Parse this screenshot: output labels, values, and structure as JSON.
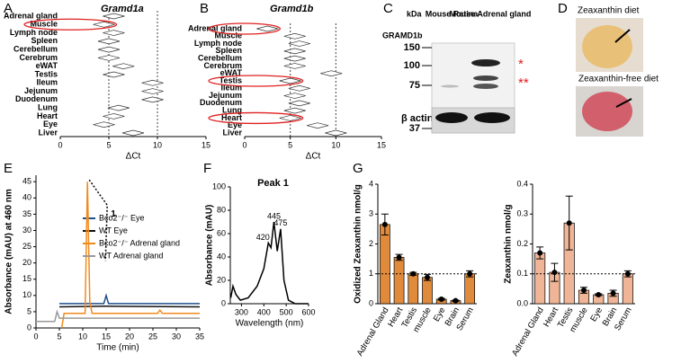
{
  "panel_labels": [
    "A",
    "B",
    "C",
    "D",
    "E",
    "F",
    "G"
  ],
  "western_blot": {
    "unit": "kDa",
    "lanes": [
      "Mouse Retina",
      "Mouse Adrenal gland"
    ],
    "target": "GRAMD1b",
    "markers": [
      150,
      100,
      75
    ],
    "loading_control": "β actin",
    "control_marker": 37,
    "asterisks": [
      "*",
      "**"
    ]
  },
  "photos": [
    "Zeaxanthin diet",
    "Zeaxanthin-free diet"
  ],
  "chart_data": [
    {
      "type": "dot_plot",
      "title": "Gramd1a",
      "x_label": "ΔCt",
      "categories": [
        "Adrenal gland",
        "Muscle",
        "Lymph node",
        "Spleen",
        "Cerebellum",
        "Cerebrum",
        "eWAT",
        "Testis",
        "Ileum",
        "Jejunum",
        "Duodenum",
        "Lung",
        "Heart",
        "Eye",
        "Liver"
      ],
      "values": [
        5.5,
        4.5,
        5.5,
        5,
        5,
        5,
        6.5,
        5.5,
        9.5,
        9.5,
        9.5,
        6,
        5.5,
        4.5,
        7.5
      ],
      "xlim": [
        0,
        15
      ],
      "xticks": [
        0,
        5,
        10,
        15
      ],
      "ref_lines": [
        5,
        10
      ],
      "circled": [
        1
      ],
      "circle_color": "#e02020"
    },
    {
      "type": "dot_plot",
      "title": "Gramd1b",
      "x_label": "ΔCt",
      "categories": [
        "Adrenal gland",
        "Muscle",
        "Lymph node",
        "Spleen",
        "Cerebellum",
        "Cerebrum",
        "eWAT",
        "Testis",
        "Ileum",
        "Jejunum",
        "Duodenum",
        "Lung",
        "Heart",
        "Eye",
        "Liver"
      ],
      "values": [
        2.5,
        5.5,
        6,
        5.5,
        5.5,
        5.5,
        9.5,
        5,
        6,
        5.5,
        6,
        5.5,
        5,
        8,
        10
      ],
      "xlim": [
        0,
        15
      ],
      "xticks": [
        0,
        5,
        10,
        15
      ],
      "ref_lines": [
        5,
        10
      ],
      "circled": [
        0,
        7,
        12
      ],
      "circle_color": "#e02020"
    },
    {
      "type": "line",
      "x_label": "Time (min)",
      "y_label": "Absorbance (mAU) at 460 nm",
      "annotation": "1",
      "xlim": [
        0,
        35
      ],
      "xticks": [
        0,
        5,
        10,
        15,
        20,
        25,
        30,
        35
      ],
      "ylim": [
        0,
        47
      ],
      "yticks": [
        0,
        5,
        10,
        15,
        20,
        25,
        30,
        35,
        40,
        45
      ],
      "legend": true,
      "series": [
        {
          "name": "Bco2⁻/⁻ Eye",
          "color": "#1f4e8c",
          "x": [
            5,
            14.5,
            15,
            15.5,
            35
          ],
          "values": [
            7.5,
            7.5,
            10,
            7.5,
            7.5
          ]
        },
        {
          "name": "WT Eye",
          "color": "#111111",
          "x": [
            5,
            15,
            35
          ],
          "values": [
            6.5,
            6.7,
            6.5
          ]
        },
        {
          "name": "Bco2⁻/⁻ Adrenal gland",
          "color": "#f08a1c",
          "x": [
            5.5,
            6,
            10.5,
            11,
            11.5,
            12,
            26,
            26.5,
            27,
            35
          ],
          "values": [
            0,
            4.5,
            4.5,
            45,
            8,
            4.5,
            4.5,
            5.5,
            4.5,
            4.5
          ]
        },
        {
          "name": "WT Adrenal gland",
          "color": "#999999",
          "x": [
            0,
            4,
            4.5,
            5,
            35
          ],
          "values": [
            2,
            2,
            5,
            3,
            3
          ]
        }
      ]
    },
    {
      "type": "line",
      "title": "Peak 1",
      "x_label": "Wavelength (nm)",
      "y_label": "Absorbance (mAU)",
      "xlim": [
        250,
        600
      ],
      "xticks": [
        300,
        400,
        500,
        600
      ],
      "ylim": [
        0,
        100
      ],
      "yticks": [
        0,
        20,
        40,
        60,
        80,
        100
      ],
      "legend": false,
      "peak_labels": [
        420,
        445,
        475
      ],
      "series": [
        {
          "name": "Peak 1",
          "color": "#000000",
          "x": [
            252,
            262,
            275,
            295,
            330,
            370,
            400,
            420,
            432,
            445,
            460,
            475,
            490,
            510,
            540,
            600
          ],
          "values": [
            5,
            15,
            8,
            3,
            5,
            15,
            30,
            52,
            48,
            70,
            45,
            64,
            20,
            3,
            0,
            0
          ]
        }
      ]
    },
    {
      "type": "bar",
      "y_label": "Oxidized Zeaxanthin nmol/g",
      "color": "#e08a3c",
      "categories": [
        "Adrenal Gland",
        "Heart",
        "Testis",
        "muscle",
        "Eye",
        "Brain",
        "Serum"
      ],
      "values": [
        2.65,
        1.55,
        1.0,
        0.88,
        0.15,
        0.1,
        1.0
      ],
      "errors": [
        0.35,
        0.1,
        0.05,
        0.1,
        0.03,
        0.02,
        0.1
      ],
      "ylim": [
        0,
        4
      ],
      "yticks": [
        0,
        1,
        2,
        3,
        4
      ],
      "ref_line": 1
    },
    {
      "type": "bar",
      "y_label": "Zeaxanthin nmol/g",
      "color": "#f0b596",
      "categories": [
        "Adrenal Gland",
        "Heart",
        "Testis",
        "muscle",
        "Eye",
        "Brain",
        "Serum"
      ],
      "values": [
        0.17,
        0.105,
        0.27,
        0.045,
        0.03,
        0.035,
        0.1
      ],
      "errors": [
        0.02,
        0.03,
        0.09,
        0.01,
        0.003,
        0.01,
        0.01
      ],
      "ylim": [
        0,
        0.4
      ],
      "yticks": [
        {
          "value": 0,
          "label": "0.0"
        },
        0.1,
        0.2,
        0.3,
        0.4
      ],
      "ref_line": 0.1
    }
  ]
}
